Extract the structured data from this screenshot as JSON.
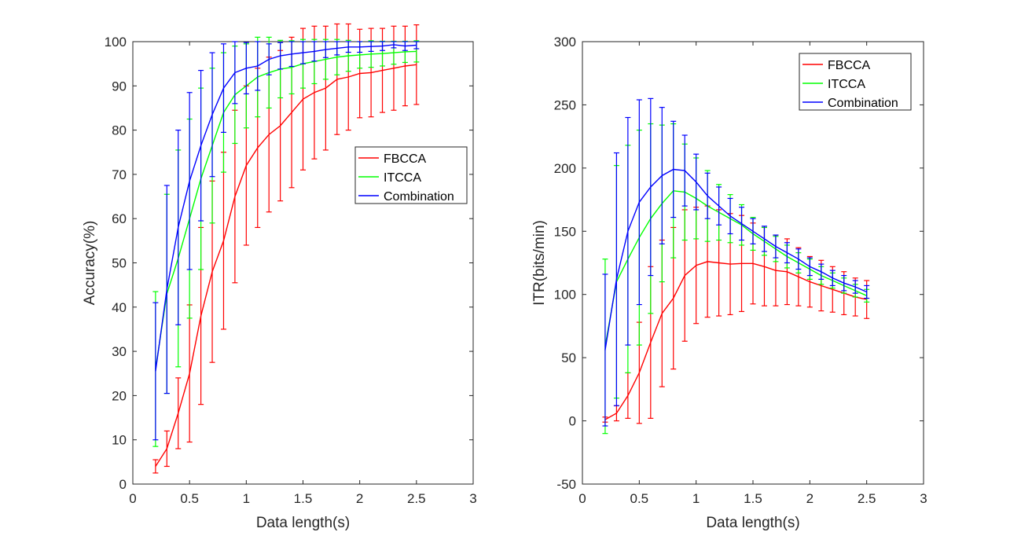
{
  "chart_data": [
    {
      "type": "line",
      "title": "",
      "xlabel": "Data length(s)",
      "ylabel": "Accuracy(%)",
      "xlim": [
        0,
        3
      ],
      "ylim": [
        0,
        100
      ],
      "xticks": [
        "0",
        "0.5",
        "1",
        "1.5",
        "2",
        "2.5",
        "3"
      ],
      "yticks": [
        "0",
        "10",
        "20",
        "30",
        "40",
        "50",
        "60",
        "70",
        "80",
        "90",
        "100"
      ],
      "error_bars": true,
      "legend_position": "center-right",
      "x": [
        0.2,
        0.3,
        0.4,
        0.5,
        0.6,
        0.7,
        0.8,
        0.9,
        1.0,
        1.1,
        1.2,
        1.3,
        1.4,
        1.5,
        1.6,
        1.7,
        1.8,
        1.9,
        2.0,
        2.1,
        2.2,
        2.3,
        2.4,
        2.5
      ],
      "series": [
        {
          "name": "FBCCA",
          "color": "#ff0000",
          "values": [
            4,
            8,
            16,
            25,
            38,
            48,
            55,
            65,
            72,
            76,
            79,
            81,
            84,
            87,
            88.5,
            89.5,
            91.5,
            92,
            92.8,
            93,
            93.5,
            94,
            94.5,
            94.8
          ],
          "errors": [
            1.5,
            4,
            8,
            15.5,
            20,
            20.5,
            20,
            19.5,
            18,
            18,
            17.5,
            17,
            17,
            16,
            15,
            14,
            12.5,
            12,
            10,
            10,
            9.5,
            9.5,
            9,
            9
          ]
        },
        {
          "name": "ITCCA",
          "color": "#00ff00",
          "values": [
            26,
            43,
            51,
            60,
            69,
            76.5,
            84,
            88,
            90,
            92,
            93,
            93.8,
            94.2,
            95,
            95.5,
            96,
            96.5,
            96.8,
            97,
            97.2,
            97.3,
            97.5,
            97.7,
            97.8
          ],
          "errors": [
            17.5,
            22.5,
            24.5,
            22.5,
            20.5,
            17.5,
            13.5,
            11,
            9.5,
            9,
            8,
            6.5,
            6,
            5.5,
            5,
            4.5,
            4,
            3.5,
            3,
            3,
            2.8,
            2.6,
            2.4,
            2.4
          ]
        },
        {
          "name": "Combination",
          "color": "#0000ff",
          "values": [
            25.5,
            44,
            58,
            68.5,
            76.5,
            83.5,
            89.5,
            93,
            94,
            94.5,
            96,
            96.8,
            97.2,
            97.5,
            97.8,
            98.2,
            98.5,
            98.8,
            98.8,
            98.9,
            99,
            99.3,
            99,
            99.2
          ],
          "errors": [
            15.5,
            23.5,
            22,
            20,
            17,
            14,
            10,
            7,
            5.8,
            5.5,
            3.5,
            3,
            2.8,
            2.5,
            2.2,
            1.8,
            1.5,
            1.2,
            1.2,
            1.1,
            1,
            0.7,
            1,
            0.8
          ]
        }
      ]
    },
    {
      "type": "line",
      "title": "",
      "xlabel": "Data length(s)",
      "ylabel": "ITR(bits/min)",
      "xlim": [
        0,
        3
      ],
      "ylim": [
        -50,
        300
      ],
      "xticks": [
        "0",
        "0.5",
        "1",
        "1.5",
        "2",
        "2.5",
        "3"
      ],
      "yticks": [
        "-50",
        "0",
        "50",
        "100",
        "150",
        "200",
        "250",
        "300"
      ],
      "error_bars": true,
      "legend_position": "top-right",
      "x": [
        0.2,
        0.3,
        0.4,
        0.5,
        0.6,
        0.7,
        0.8,
        0.9,
        1.0,
        1.1,
        1.2,
        1.3,
        1.4,
        1.5,
        1.6,
        1.7,
        1.8,
        1.9,
        2.0,
        2.1,
        2.2,
        2.3,
        2.4,
        2.5
      ],
      "series": [
        {
          "name": "FBCCA",
          "color": "#ff0000",
          "values": [
            1,
            6,
            20,
            38,
            62,
            85,
            97,
            115,
            123,
            126,
            125,
            124,
            124.5,
            124.5,
            122,
            119,
            118,
            114,
            110,
            107,
            104,
            101,
            98,
            96
          ],
          "errors": [
            2,
            6,
            18,
            40,
            60,
            58,
            56,
            52,
            46,
            44,
            42,
            40,
            38,
            32,
            31,
            28,
            26,
            23,
            20,
            20,
            18,
            17,
            15,
            15
          ]
        },
        {
          "name": "ITCCA",
          "color": "#00ff00",
          "values": [
            59,
            110,
            128,
            145,
            160,
            172,
            182,
            181,
            176,
            170,
            165,
            160,
            155,
            148,
            142,
            136,
            130,
            125,
            120,
            115,
            111,
            107,
            103,
            99
          ],
          "errors": [
            69,
            92,
            90,
            85,
            75,
            62,
            53,
            38,
            32,
            28,
            22,
            19,
            16,
            13,
            11,
            10,
            9,
            8,
            8,
            7,
            6,
            6,
            5,
            5
          ]
        },
        {
          "name": "Combination",
          "color": "#0000ff",
          "values": [
            56,
            112,
            150,
            173,
            185,
            194,
            199,
            198,
            189,
            178,
            170,
            162,
            156,
            150,
            144,
            138,
            133,
            128,
            122,
            118,
            113,
            109,
            106,
            102
          ],
          "errors": [
            60,
            100,
            90,
            81,
            70,
            54,
            38,
            28,
            22,
            18,
            15,
            14,
            13,
            10,
            10,
            9,
            8,
            8,
            7,
            6,
            6,
            6,
            5,
            5
          ]
        }
      ]
    }
  ]
}
